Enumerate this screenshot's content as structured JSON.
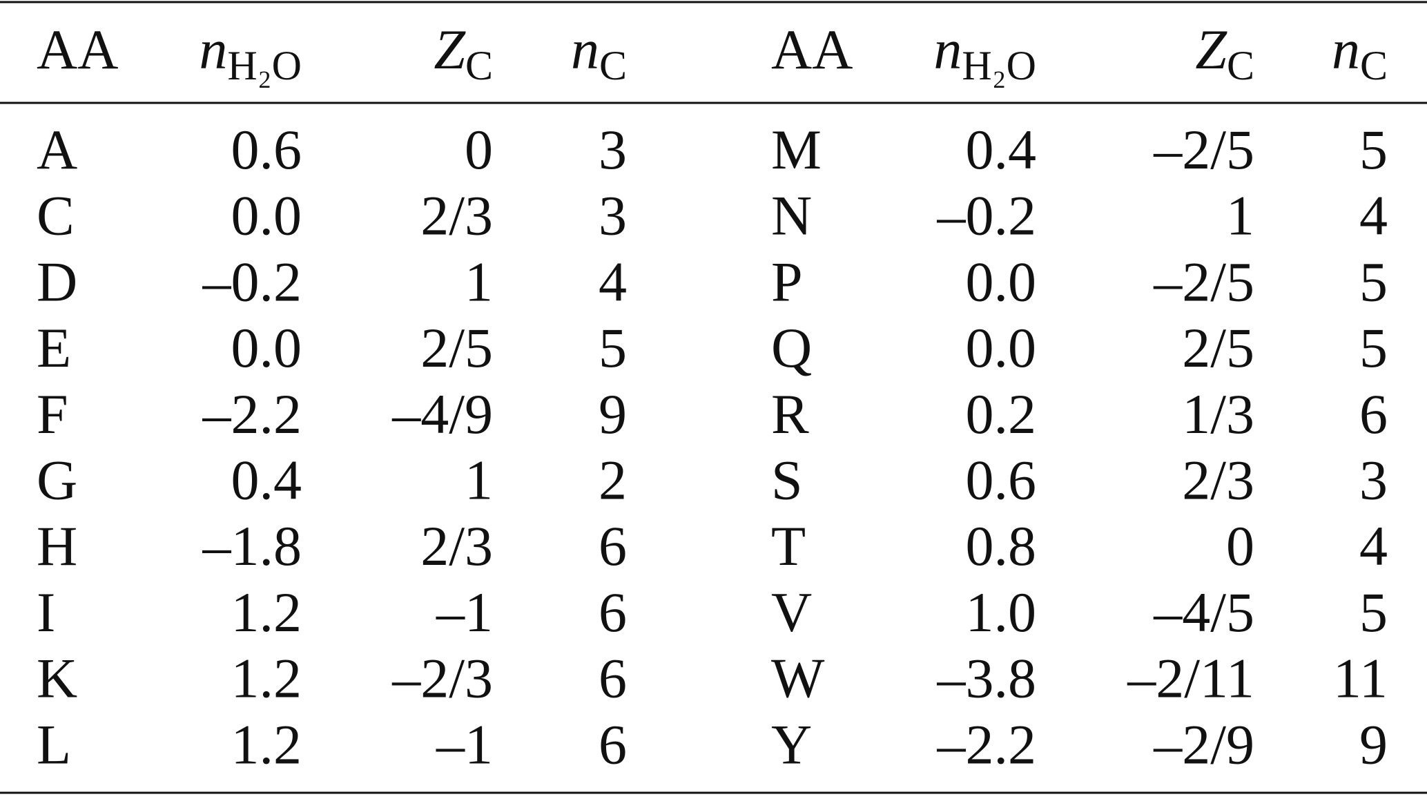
{
  "table": {
    "columns": [
      {
        "main": "AA"
      },
      {
        "main": "n",
        "sub": "H₂O"
      },
      {
        "main": "Z",
        "sub": "C"
      },
      {
        "main": "n",
        "sub": "C"
      },
      {
        "main": "AA"
      },
      {
        "main": "n",
        "sub": "H₂O"
      },
      {
        "main": "Z",
        "sub": "C"
      },
      {
        "main": "n",
        "sub": "C"
      }
    ],
    "rows": [
      [
        "A",
        "0.6",
        "0",
        "3",
        "M",
        "0.4",
        "–2/5",
        "5"
      ],
      [
        "C",
        "0.0",
        "2/3",
        "3",
        "N",
        "–0.2",
        "1",
        "4"
      ],
      [
        "D",
        "–0.2",
        "1",
        "4",
        "P",
        "0.0",
        "–2/5",
        "5"
      ],
      [
        "E",
        "0.0",
        "2/5",
        "5",
        "Q",
        "0.0",
        "2/5",
        "5"
      ],
      [
        "F",
        "–2.2",
        "–4/9",
        "9",
        "R",
        "0.2",
        "1/3",
        "6"
      ],
      [
        "G",
        "0.4",
        "1",
        "2",
        "S",
        "0.6",
        "2/3",
        "3"
      ],
      [
        "H",
        "–1.8",
        "2/3",
        "6",
        "T",
        "0.8",
        "0",
        "4"
      ],
      [
        "I",
        "1.2",
        "–1",
        "6",
        "V",
        "1.0",
        "–4/5",
        "5"
      ],
      [
        "K",
        "1.2",
        "–2/3",
        "6",
        "W",
        "–3.8",
        "–2/11",
        "11"
      ],
      [
        "L",
        "1.2",
        "–1",
        "6",
        "Y",
        "–2.2",
        "–2/9",
        "9"
      ]
    ]
  }
}
